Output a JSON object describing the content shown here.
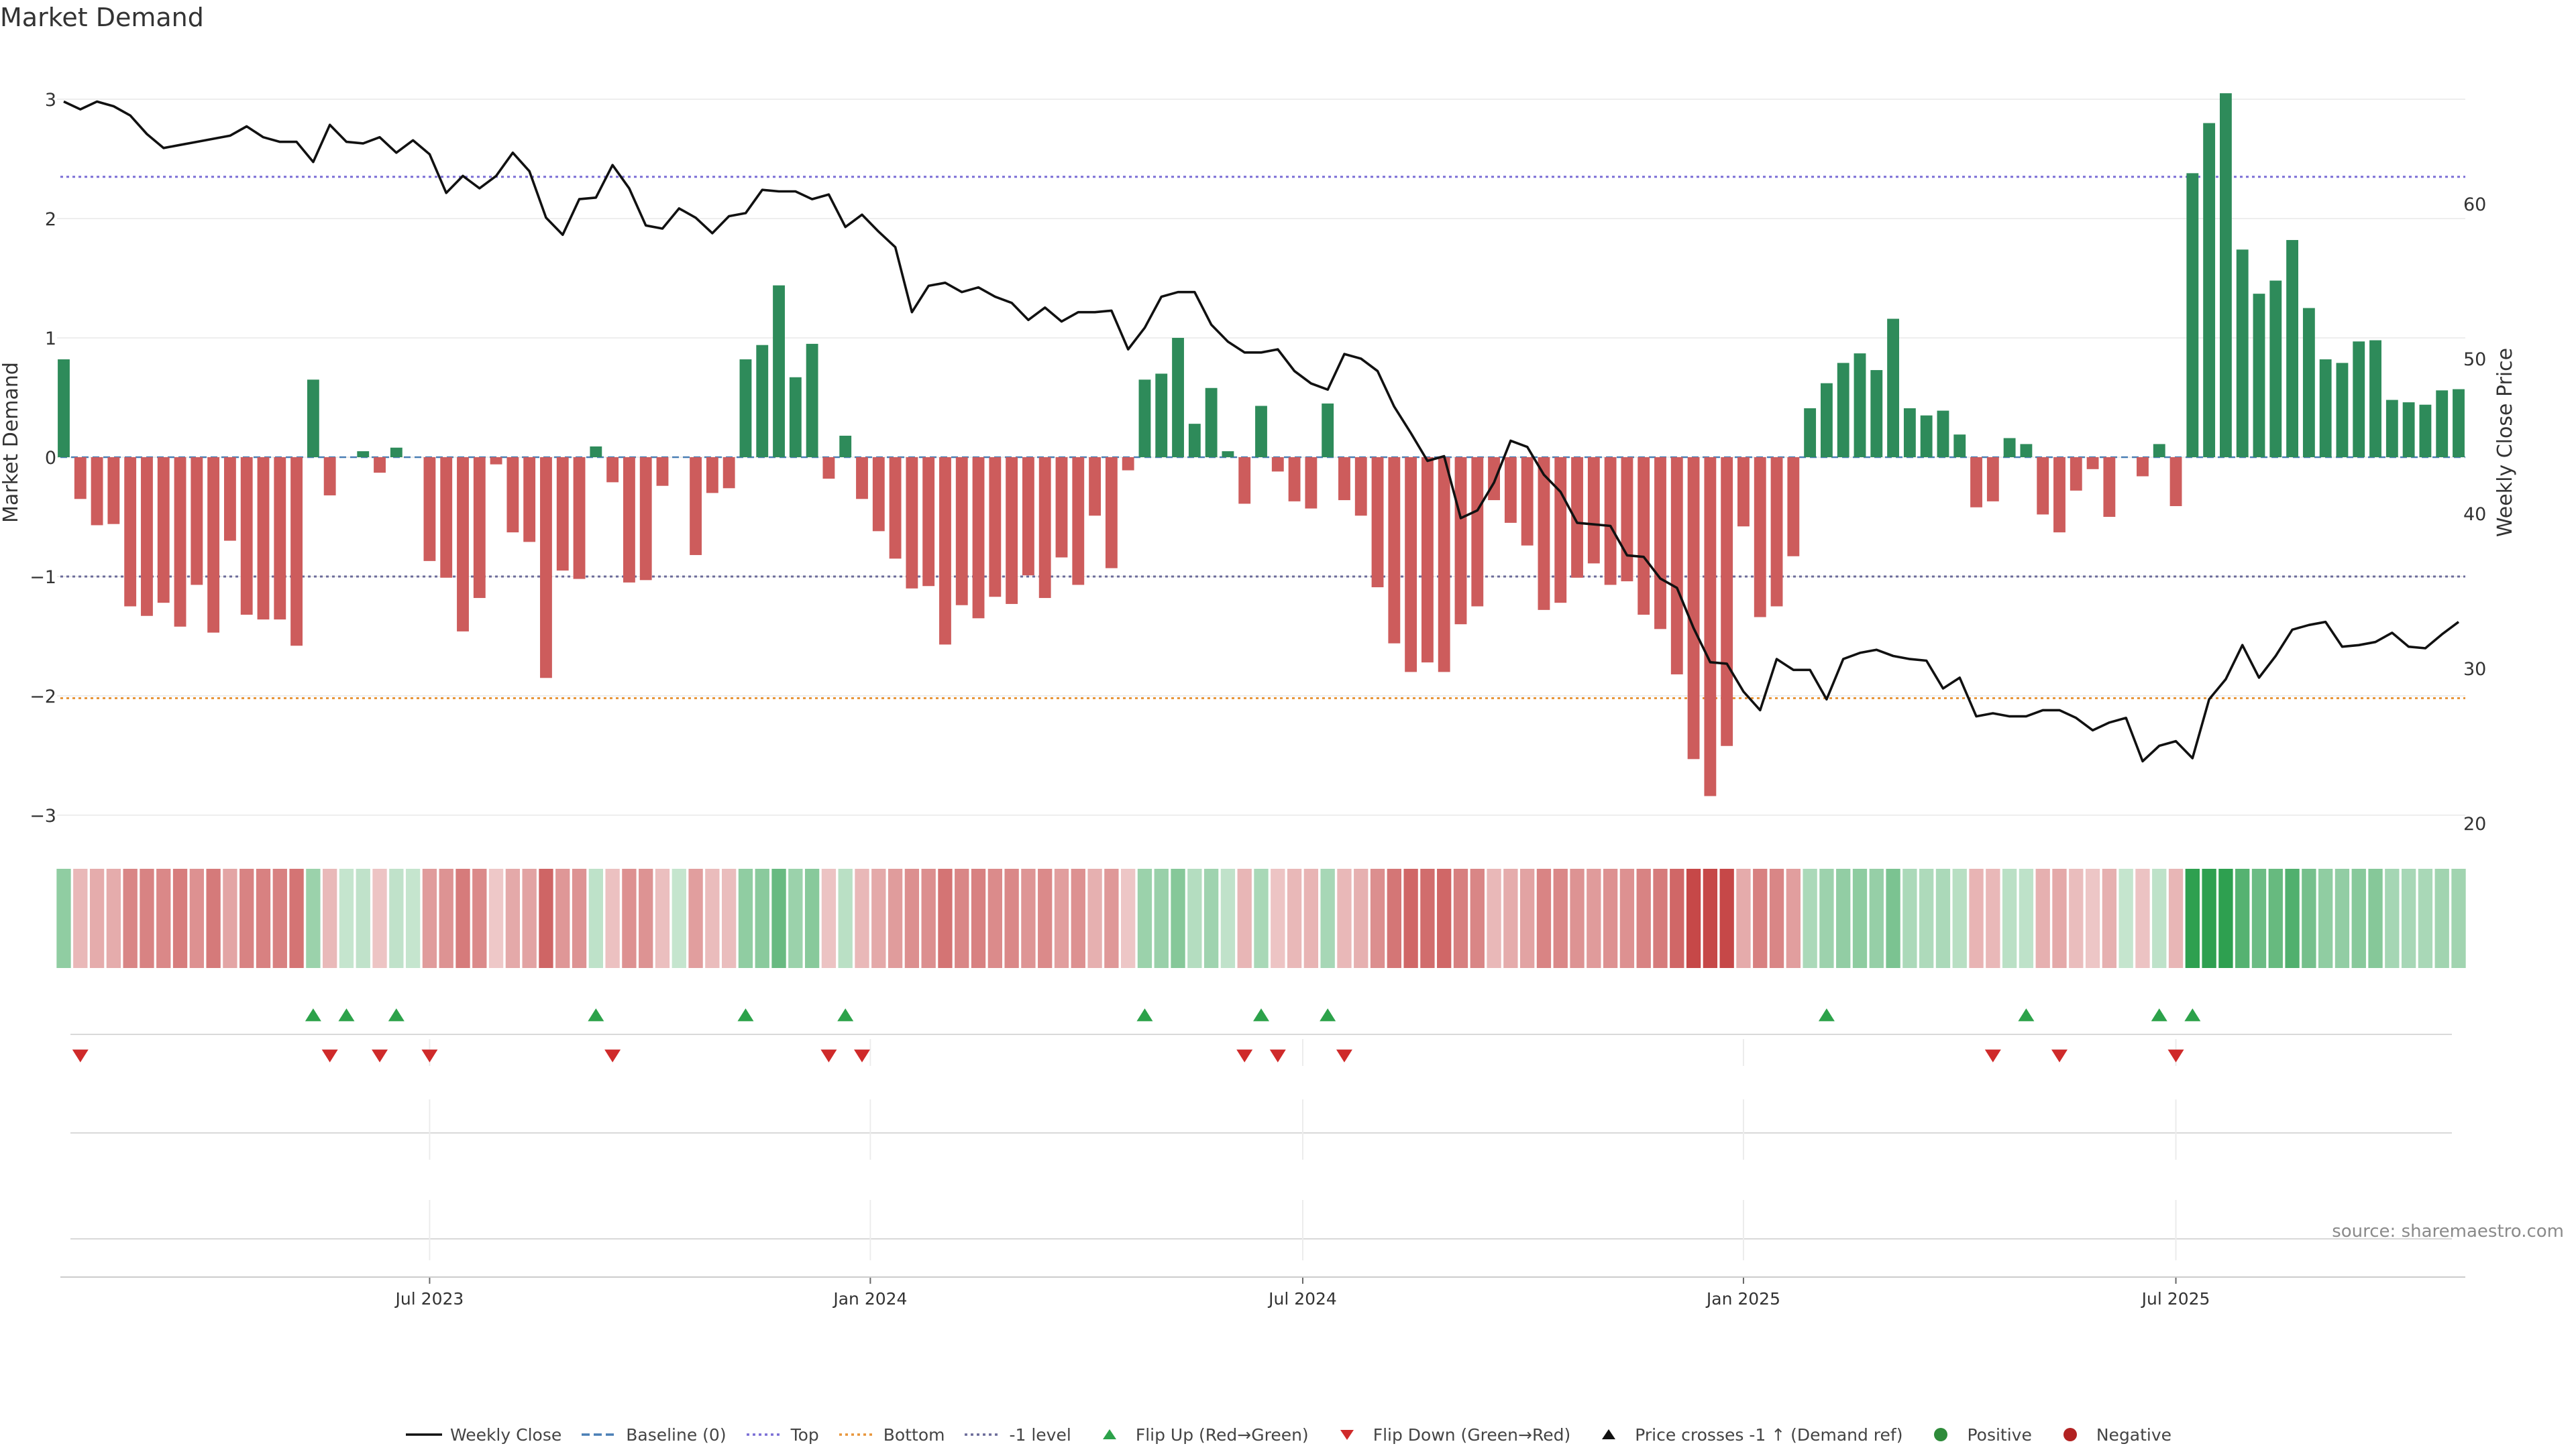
{
  "chart_data": {
    "type": "bar",
    "title": "Market Demand",
    "ylabel": "Market Demand",
    "y2label": "Weekly Close Price",
    "ylim": [
      -3.2,
      3.2
    ],
    "y2lim": [
      18.5,
      68.5
    ],
    "yticks": [
      "−3",
      "−2",
      "−1",
      "0",
      "1",
      "2",
      "3"
    ],
    "ytick_values": [
      -3,
      -2,
      -1,
      0,
      1,
      2,
      3
    ],
    "y2ticks": [
      "20",
      "30",
      "40",
      "50",
      "60"
    ],
    "y2tick_values": [
      20,
      30,
      40,
      50,
      60
    ],
    "x_start": "2023-03-05",
    "week_count": 145,
    "x_ticks": [
      {
        "label": "Jul 2023",
        "week": 22
      },
      {
        "label": "Jan 2024",
        "week": 48.5
      },
      {
        "label": "Jul 2024",
        "week": 74.5
      },
      {
        "label": "Jan 2025",
        "week": 101
      },
      {
        "label": "Jul 2025",
        "week": 127
      }
    ],
    "reference_lines": {
      "top": 2.35,
      "bottom": -2.02,
      "minus_one": -1.0,
      "baseline": 0
    },
    "demand": [
      0.82,
      -0.35,
      -0.57,
      -0.56,
      -1.25,
      -1.33,
      -1.22,
      -1.42,
      -1.07,
      -1.47,
      -0.7,
      -1.32,
      -1.36,
      -1.36,
      -1.58,
      0.65,
      -0.32,
      0.0,
      0.05,
      -0.13,
      0.08,
      0.0,
      -0.87,
      -1.01,
      -1.46,
      -1.18,
      -0.06,
      -0.63,
      -0.71,
      -1.85,
      -0.95,
      -1.02,
      0.09,
      -0.21,
      -1.05,
      -1.03,
      -0.24,
      0.0,
      -0.82,
      -0.3,
      -0.26,
      0.82,
      0.94,
      1.44,
      0.67,
      0.95,
      -0.18,
      0.18,
      -0.35,
      -0.62,
      -0.85,
      -1.1,
      -1.08,
      -1.57,
      -1.24,
      -1.35,
      -1.17,
      -1.23,
      -0.99,
      -1.18,
      -0.84,
      -1.07,
      -0.49,
      -0.93,
      -0.11,
      0.65,
      0.7,
      1.0,
      0.28,
      0.58,
      0.05,
      -0.39,
      0.43,
      -0.12,
      -0.37,
      -0.43,
      0.45,
      -0.36,
      -0.49,
      -1.09,
      -1.56,
      -1.8,
      -1.72,
      -1.8,
      -1.4,
      -1.25,
      -0.36,
      -0.55,
      -0.74,
      -1.28,
      -1.22,
      -1.01,
      -0.89,
      -1.07,
      -1.04,
      -1.32,
      -1.44,
      -1.82,
      -2.53,
      -2.84,
      -2.42,
      -0.58,
      -1.34,
      -1.25,
      -0.83,
      0.41,
      0.62,
      0.79,
      0.87,
      0.73,
      1.16,
      0.41,
      0.35,
      0.39,
      0.19,
      -0.42,
      -0.37,
      0.16,
      0.11,
      -0.48,
      -0.63,
      -0.28,
      -0.1,
      -0.5,
      0.0,
      -0.16,
      0.11,
      -0.41,
      2.38,
      2.8,
      3.05,
      1.74,
      1.37,
      1.48,
      1.82,
      1.25,
      0.82,
      0.79,
      0.97,
      0.98,
      0.48,
      0.46,
      0.44,
      0.56,
      0.57
    ],
    "close": [
      66.6,
      66.1,
      66.6,
      66.3,
      65.7,
      64.5,
      63.6,
      63.8,
      64.0,
      64.2,
      64.4,
      65.0,
      64.3,
      64.0,
      64.0,
      62.7,
      65.1,
      64.0,
      63.9,
      64.3,
      63.3,
      64.1,
      63.2,
      60.7,
      61.8,
      61.0,
      61.8,
      63.3,
      62.1,
      59.1,
      58.0,
      60.3,
      60.4,
      62.5,
      61.0,
      58.6,
      58.4,
      59.7,
      59.1,
      58.1,
      59.2,
      59.4,
      60.9,
      60.8,
      60.8,
      60.3,
      60.6,
      58.5,
      59.3,
      58.2,
      57.2,
      53.0,
      54.7,
      54.9,
      54.3,
      54.6,
      54.0,
      53.6,
      52.5,
      53.3,
      52.4,
      53.0,
      53.0,
      53.1,
      50.6,
      52.0,
      54.0,
      54.3,
      54.3,
      52.2,
      51.1,
      50.4,
      50.4,
      50.6,
      49.2,
      48.4,
      48.0,
      50.3,
      50.0,
      49.2,
      46.9,
      45.2,
      43.4,
      43.7,
      39.7,
      40.2,
      42.0,
      44.7,
      44.3,
      42.5,
      41.4,
      39.4,
      39.3,
      39.2,
      37.3,
      37.2,
      35.8,
      35.2,
      32.6,
      30.4,
      30.3,
      28.5,
      27.3,
      30.6,
      29.9,
      29.9,
      28.0,
      30.6,
      31.0,
      31.2,
      30.8,
      30.6,
      30.5,
      28.7,
      29.4,
      26.9,
      27.1,
      26.9,
      26.9,
      27.3,
      27.3,
      26.8,
      26.0,
      26.5,
      26.8,
      24.0,
      25.0,
      25.3,
      24.2,
      28.0,
      29.3,
      31.5,
      29.4,
      30.8,
      32.5,
      32.8,
      33.0,
      31.4,
      31.5,
      31.7,
      32.3,
      31.4,
      31.3,
      32.2,
      33.0
    ],
    "flip_up_weeks": [
      15,
      17,
      20,
      32,
      41,
      47,
      65,
      72,
      76,
      106,
      118,
      126,
      128
    ],
    "flip_down_weeks": [
      1,
      16,
      19,
      22,
      33,
      46,
      48,
      71,
      73,
      77,
      116,
      120,
      127
    ],
    "legend": [
      {
        "label": "Weekly Close",
        "kind": "line-solid",
        "color": "#111111"
      },
      {
        "label": "Baseline (0)",
        "kind": "line-dashed",
        "color": "#4a7fb5"
      },
      {
        "label": "Top",
        "kind": "line-dotted",
        "color": "#7b6fd6"
      },
      {
        "label": "Bottom",
        "kind": "line-dotted",
        "color": "#e8963a"
      },
      {
        "label": "-1 level",
        "kind": "line-dotted",
        "color": "#6b6b9a"
      },
      {
        "label": "Flip Up (Red→Green)",
        "kind": "triangle-up",
        "color": "#2ca24a"
      },
      {
        "label": "Flip Down (Green→Red)",
        "kind": "triangle-down",
        "color": "#cf2a2a"
      },
      {
        "label": "Price crosses -1 ↑ (Demand ref)",
        "kind": "triangle-up",
        "color": "#111111"
      },
      {
        "label": "Positive",
        "kind": "dot",
        "color": "#2e8b3a"
      },
      {
        "label": "Negative",
        "kind": "dot",
        "color": "#b22222"
      }
    ],
    "source": "source: sharemaestro.com"
  },
  "colors": {
    "positive_bar": "#2e8b5a",
    "negative_bar": "#cd5c5c",
    "price_line": "#111111",
    "top_line": "#7b6fd6",
    "bottom_line": "#e8963a",
    "minus_one_line": "#6b6b9a",
    "baseline": "#4a7fb5"
  }
}
